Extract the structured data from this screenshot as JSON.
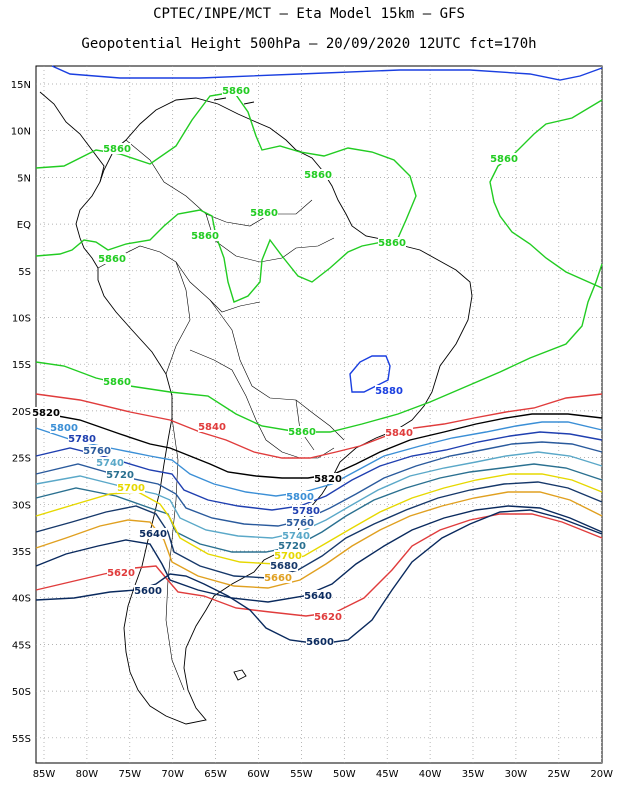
{
  "title_line1": "CPTEC/INPE/MCT —  Eta Model 15km — GFS",
  "title_line2": "Geopotential Height 500hPa — 20/09/2020 12UTC fct=170h",
  "lat_labels": [
    "15N",
    "10N",
    "5N",
    "EQ",
    "5S",
    "10S",
    "15S",
    "20S",
    "25S",
    "30S",
    "35S",
    "40S",
    "45S",
    "50S",
    "55S"
  ],
  "lon_labels": [
    "85W",
    "80W",
    "75W",
    "70W",
    "65W",
    "60W",
    "55W",
    "50W",
    "45W",
    "40W",
    "35W",
    "30W",
    "25W",
    "20W"
  ],
  "contour_labels": [
    {
      "text": "5860",
      "color": "#22cc22"
    },
    {
      "text": "5860",
      "color": "#22cc22"
    },
    {
      "text": "5860",
      "color": "#22cc22"
    },
    {
      "text": "5860",
      "color": "#22cc22"
    },
    {
      "text": "5860",
      "color": "#22cc22"
    },
    {
      "text": "5860",
      "color": "#22cc22"
    },
    {
      "text": "5860",
      "color": "#22cc22"
    },
    {
      "text": "5860",
      "color": "#22cc22"
    },
    {
      "text": "5860",
      "color": "#22cc22"
    },
    {
      "text": "5860",
      "color": "#22cc22"
    },
    {
      "text": "5880",
      "color": "#1a3fe0"
    },
    {
      "text": "5840",
      "color": "#e03c3c"
    },
    {
      "text": "5840",
      "color": "#e03c3c"
    },
    {
      "text": "5820",
      "color": "#000000"
    },
    {
      "text": "5820",
      "color": "#000000"
    },
    {
      "text": "5800",
      "color": "#3b8fd6"
    },
    {
      "text": "5800",
      "color": "#3b8fd6"
    },
    {
      "text": "5780",
      "color": "#1f3fb0"
    },
    {
      "text": "5780",
      "color": "#1f3fb0"
    },
    {
      "text": "5760",
      "color": "#2a5a9c"
    },
    {
      "text": "5760",
      "color": "#2a5a9c"
    },
    {
      "text": "5740",
      "color": "#5aa8c8"
    },
    {
      "text": "5740",
      "color": "#5aa8c8"
    },
    {
      "text": "5720",
      "color": "#2a7090"
    },
    {
      "text": "5720",
      "color": "#2a7090"
    },
    {
      "text": "5700",
      "color": "#e6d800"
    },
    {
      "text": "5700",
      "color": "#e6d800"
    },
    {
      "text": "5680",
      "color": "#16386a"
    },
    {
      "text": "5660",
      "color": "#e0a020"
    },
    {
      "text": "5640",
      "color": "#0a2a5e"
    },
    {
      "text": "5640",
      "color": "#0a2a5e"
    },
    {
      "text": "5620",
      "color": "#e03c3c"
    },
    {
      "text": "5620",
      "color": "#e03c3c"
    },
    {
      "text": "5600",
      "color": "#0a2a5e"
    },
    {
      "text": "5600",
      "color": "#0a2a5e"
    }
  ]
}
